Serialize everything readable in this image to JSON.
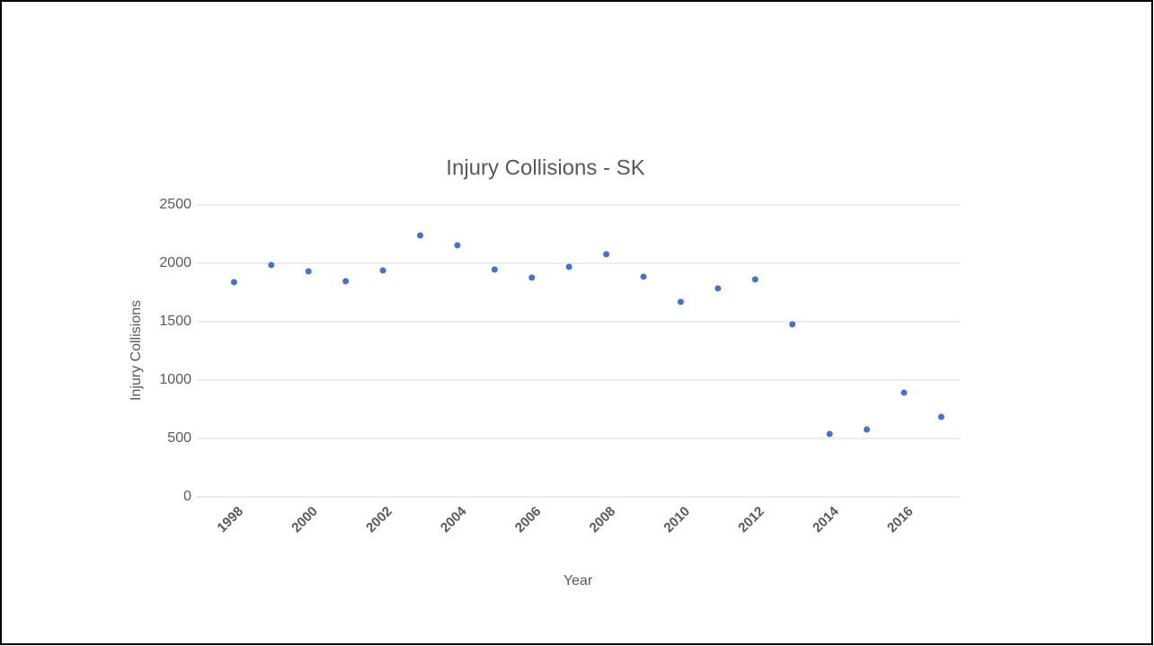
{
  "chart_data": {
    "type": "scatter",
    "title": "Injury Collisions - SK",
    "x_label": "Year",
    "y_label": "Injury Collisions",
    "x": [
      1998,
      1999,
      2000,
      2001,
      2002,
      2003,
      2004,
      2005,
      2006,
      2007,
      2008,
      2009,
      2010,
      2011,
      2012,
      2013,
      2014,
      2015,
      2016,
      2017
    ],
    "series": [
      {
        "name": "Injury Collisions",
        "color": "#4472c4",
        "values": [
          1838,
          1985,
          1931,
          1846,
          1938,
          2238,
          2154,
          1946,
          1877,
          1969,
          2077,
          1885,
          1669,
          1785,
          1862,
          1477,
          538,
          577,
          892,
          685
        ]
      }
    ],
    "xlim": [
      1997,
      2017.5
    ],
    "xticks": [
      1998,
      2000,
      2002,
      2004,
      2006,
      2008,
      2010,
      2012,
      2014,
      2016
    ],
    "ylim": [
      0,
      2500
    ],
    "yticks": [
      0,
      500,
      1000,
      1500,
      2000,
      2500
    ],
    "grid": true
  }
}
